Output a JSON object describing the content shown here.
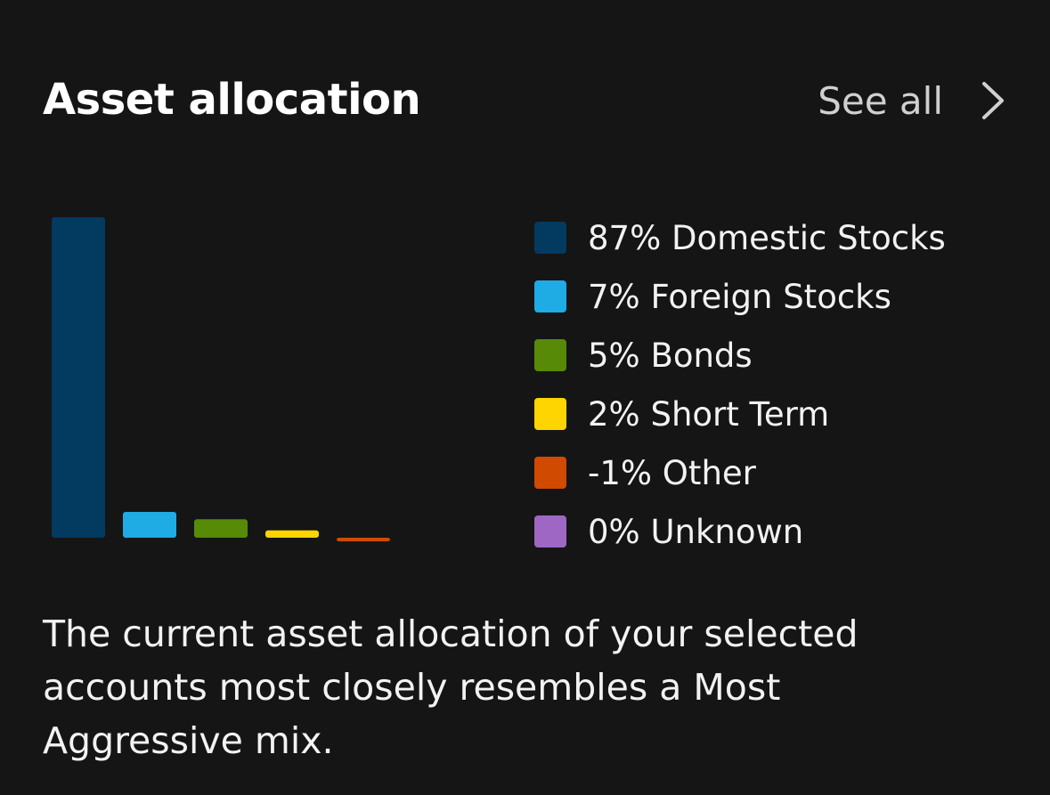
{
  "header": {
    "title": "Asset allocation",
    "see_all_label": "See all",
    "see_all_icon": "chevron-right-icon"
  },
  "chart_data": {
    "type": "bar",
    "categories": [
      "Domestic Stocks",
      "Foreign Stocks",
      "Bonds",
      "Short Term",
      "Other",
      "Unknown"
    ],
    "values": [
      87,
      7,
      5,
      2,
      -1,
      0
    ],
    "colors": [
      "#033a60",
      "#1fabe3",
      "#568a07",
      "#ffd500",
      "#d04a02",
      "#9e67c4"
    ],
    "title": "",
    "xlabel": "",
    "ylabel": "",
    "ylim": [
      -1,
      87
    ],
    "grid": false,
    "legend": "right"
  },
  "legend": [
    {
      "label": "87% Domestic Stocks",
      "color": "#033a60"
    },
    {
      "label": "7% Foreign Stocks",
      "color": "#1fabe3"
    },
    {
      "label": "5% Bonds",
      "color": "#568a07"
    },
    {
      "label": "2% Short Term",
      "color": "#ffd500"
    },
    {
      "label": "-1% Other",
      "color": "#d04a02"
    },
    {
      "label": "0% Unknown",
      "color": "#9e67c4"
    }
  ],
  "summary": "The current asset allocation of your selected accounts most closely resembles a Most Aggressive mix."
}
